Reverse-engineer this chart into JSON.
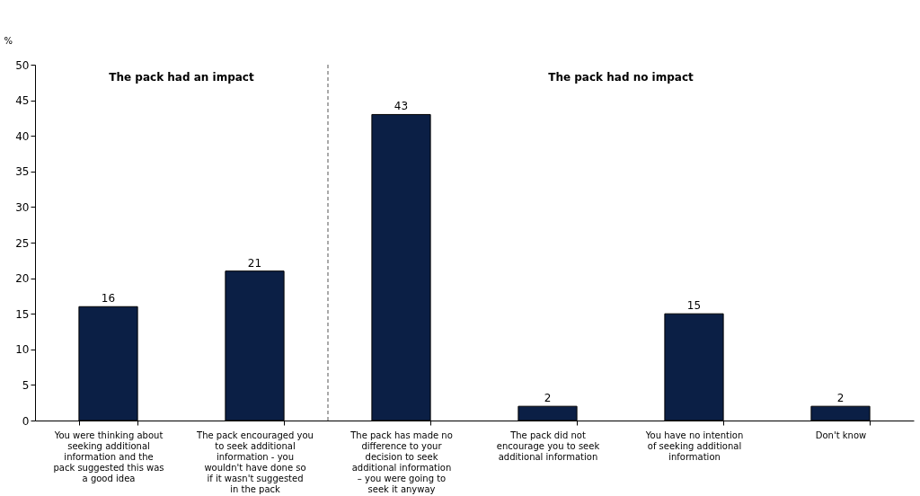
{
  "chart_data": {
    "type": "bar",
    "categories": [
      "You were thinking about seeking additional information and the pack suggested this was a good idea",
      "The pack encouraged you to seek additional information - you wouldn't have done so if it wasn't suggested in the pack",
      "The pack has made no difference to your decision to seek additional information – you were going to seek it anyway",
      "The pack did not encourage you to seek additional information",
      "You have no intention of seeking additional information",
      "Don't know"
    ],
    "values": [
      16,
      21,
      43,
      2,
      15,
      2
    ],
    "color": "#0b1f45",
    "data_labels": true,
    "ylabel": "%",
    "ylim": [
      0,
      50
    ],
    "yticks": [
      0,
      5,
      10,
      15,
      20,
      25,
      30,
      35,
      40,
      45,
      50
    ],
    "grid": false,
    "annotations": [
      "The pack had an impact",
      "The pack had no impact"
    ]
  }
}
